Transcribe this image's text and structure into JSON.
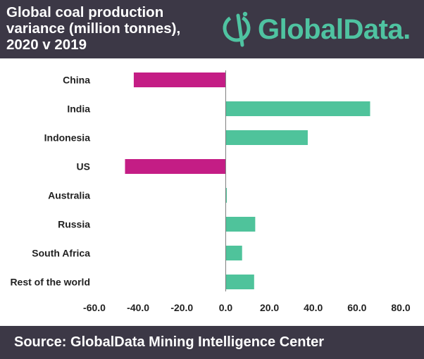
{
  "header": {
    "title_lines": [
      "Global coal production",
      "variance (million tonnes),",
      "2020 v 2019"
    ],
    "brand": "GlobalData.",
    "colors": {
      "background": "#3c3846",
      "brand": "#4fc3a1"
    },
    "logo_icon": "globaldata-logo-icon"
  },
  "footer": {
    "source": "Source:  GlobalData Mining Intelligence Center"
  },
  "chart_data": {
    "type": "bar",
    "orientation": "horizontal",
    "categories": [
      "China",
      "India",
      "Indonesia",
      "US",
      "Australia",
      "Russia",
      "South Africa",
      "Rest of the world"
    ],
    "values": [
      -42,
      66,
      37.5,
      -46,
      0.5,
      13.5,
      7.5,
      13
    ],
    "xlim": [
      -60,
      80
    ],
    "xticks": [
      "-60.0",
      "-40.0",
      "-20.0",
      "0.0",
      "20.0",
      "40.0",
      "60.0",
      "80.0"
    ],
    "xtick_values": [
      -60,
      -40,
      -20,
      0,
      20,
      40,
      60,
      80
    ],
    "grid": false,
    "colors": {
      "negative": "#c41d85",
      "positive": "#4fc39b",
      "zero_line": "#7a7a7a"
    }
  }
}
